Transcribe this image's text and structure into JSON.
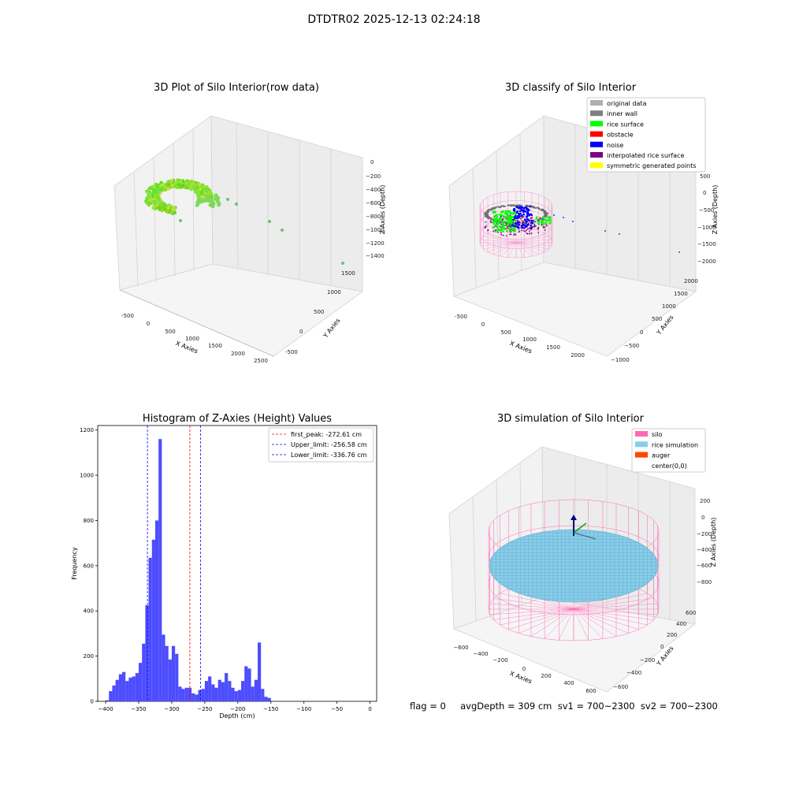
{
  "figure": {
    "suptitle": "DTDTR02 2025-12-13 02:24:18",
    "footer": "flag = 0     avgDepth = 309 cm  sv1 = 700~2300  sv2 = 700~2300"
  },
  "panels": {
    "raw": {
      "title": "3D Plot of Silo Interior(row data)",
      "xlabel": "X Axies",
      "ylabel": "Y Axies",
      "zlabel": "Z Axies (Depth)",
      "xticks": [
        "-500",
        "0",
        "500",
        "1000",
        "1500",
        "2000",
        "2500"
      ],
      "yticks": [
        "-500",
        "0",
        "500",
        "1000",
        "1500"
      ],
      "zticks": [
        "0",
        "−200",
        "−400",
        "−600",
        "−800",
        "−1000",
        "−1200",
        "−1400"
      ]
    },
    "classify": {
      "title": "3D classify of Silo Interior",
      "xlabel": "X Axies",
      "ylabel": "Y Axies",
      "zlabel": "Z Axies (Depth)",
      "xticks": [
        "-500",
        "0",
        "500",
        "1000",
        "1500",
        "2000"
      ],
      "yticks": [
        "−1000",
        "−500",
        "0",
        "500",
        "1000",
        "1500",
        "2000"
      ],
      "zticks": [
        "500",
        "0",
        "−500",
        "−1000",
        "−1500",
        "−2000"
      ],
      "legend": [
        {
          "label": "original data",
          "color": "#b0b0b0"
        },
        {
          "label": "inner wall",
          "color": "#808080"
        },
        {
          "label": "rice surface",
          "color": "#00ff00"
        },
        {
          "label": "obstacle",
          "color": "#ff0000"
        },
        {
          "label": "noise",
          "color": "#0000ff"
        },
        {
          "label": "interpolated rice surface",
          "color": "#800080"
        },
        {
          "label": "symmetric generated points",
          "color": "#ffff00"
        }
      ]
    },
    "simulation": {
      "title": "3D simulation of Silo Interior",
      "xlabel": "X Axies",
      "ylabel": "Y Axies",
      "zlabel": "Z Axies (Depth)",
      "xticks": [
        "−600",
        "−400",
        "−200",
        "0",
        "200",
        "400",
        "600"
      ],
      "yticks": [
        "−600",
        "−400",
        "−200",
        "0",
        "200",
        "400",
        "600"
      ],
      "zticks": [
        "200",
        "0",
        "−200",
        "−400",
        "−600",
        "−800"
      ],
      "legend": [
        {
          "label": "silo",
          "color": "#ff69b4"
        },
        {
          "label": "rice simulation",
          "color": "#87ceeb"
        },
        {
          "label": "auger",
          "color": "#ff4500"
        },
        {
          "label": "center(0,0)",
          "color": ""
        }
      ]
    }
  },
  "chart_data": {
    "type": "bar",
    "title": "Histogram of Z-Axies (Height) Values",
    "xlabel": "Depth (cm)",
    "ylabel": "Frequency",
    "xlim": [
      -412,
      10
    ],
    "ylim": [
      0,
      1220
    ],
    "xticks": [
      -400,
      -350,
      -300,
      -250,
      -200,
      -150,
      -100,
      -50,
      0
    ],
    "yticks": [
      0,
      200,
      400,
      600,
      800,
      1000,
      1200
    ],
    "bin_start": -400,
    "bin_width": 5,
    "bar_color": "#4d4dff",
    "values": [
      5,
      45,
      70,
      95,
      120,
      130,
      90,
      105,
      110,
      125,
      170,
      255,
      425,
      635,
      715,
      800,
      1160,
      295,
      245,
      185,
      245,
      210,
      65,
      55,
      60,
      60,
      35,
      30,
      50,
      55,
      90,
      110,
      75,
      60,
      95,
      85,
      125,
      90,
      60,
      45,
      50,
      90,
      155,
      145,
      65,
      95,
      260,
      55,
      20,
      15
    ],
    "lines": [
      {
        "label": "first_peak: -272.61 cm",
        "x": -272.61,
        "color": "#ff0000",
        "style": "dashed"
      },
      {
        "label": "Upper_limit: -256.58 cm",
        "x": -256.58,
        "color": "#0000ff",
        "style": "dashed"
      },
      {
        "label": "Lower_limit: -336.76 cm",
        "x": -336.76,
        "color": "#0000ff",
        "style": "dashed"
      }
    ],
    "legend_position": "upper right"
  }
}
